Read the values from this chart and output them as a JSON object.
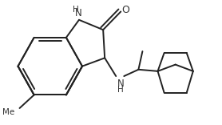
{
  "background": "#ffffff",
  "lc": "#222222",
  "lw": 1.4,
  "figsize": [
    2.78,
    1.56
  ],
  "dpi": 100,
  "xlim": [
    0,
    278
  ],
  "ylim": [
    0,
    156
  ]
}
